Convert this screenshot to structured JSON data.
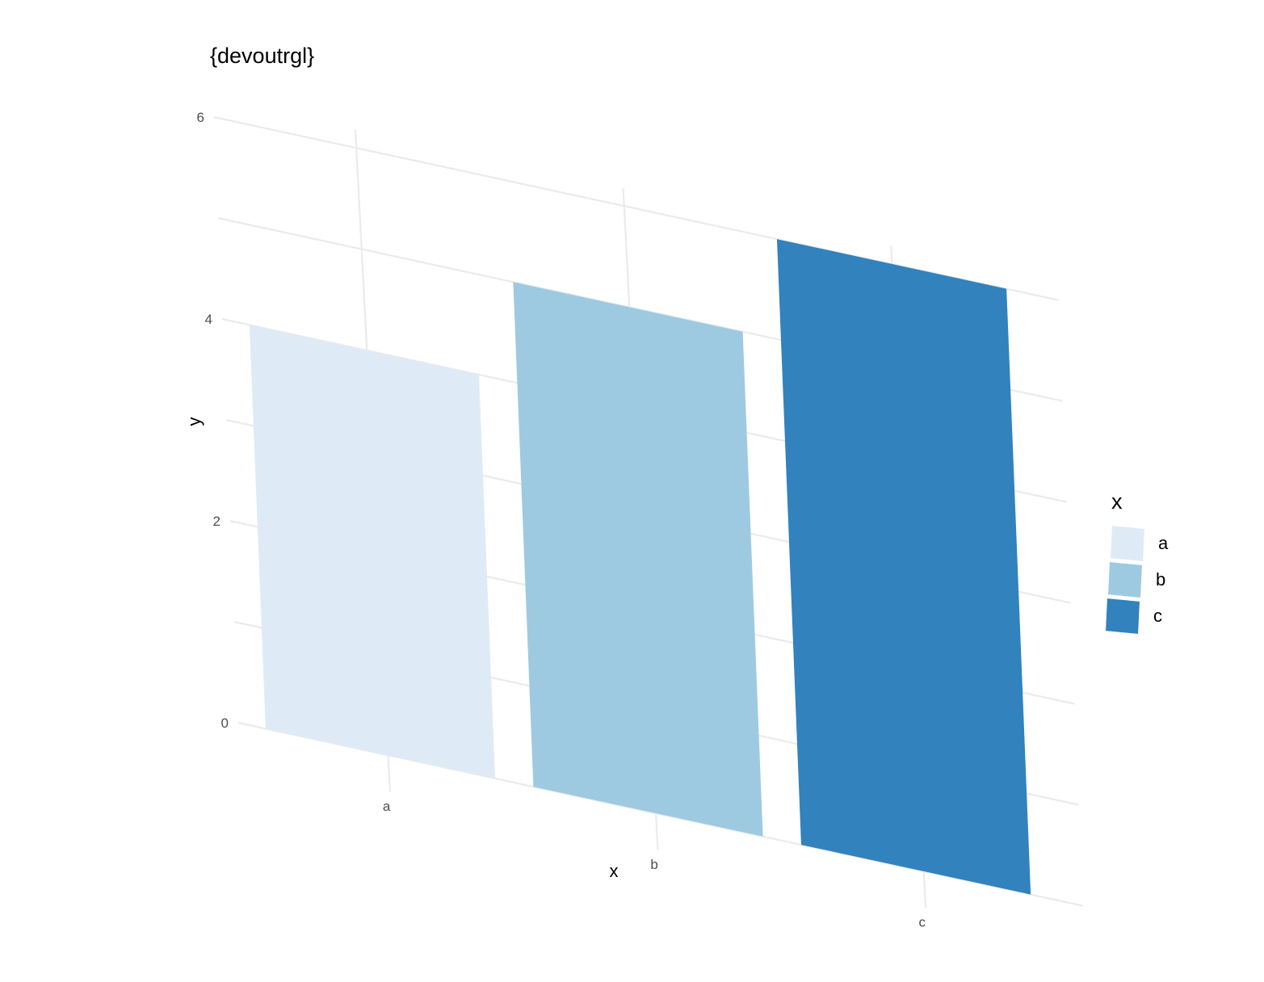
{
  "chart_data": {
    "type": "bar",
    "title": "{devoutrgl}",
    "xlabel": "x",
    "ylabel": "y",
    "categories": [
      "a",
      "b",
      "c"
    ],
    "values": [
      4,
      5,
      6
    ],
    "ylim": [
      0,
      6
    ],
    "y_ticks": [
      "0",
      "2",
      "4",
      "6"
    ],
    "grid": true,
    "legend": {
      "title": "x",
      "position": "right",
      "entries": [
        "a",
        "b",
        "c"
      ]
    },
    "colors": [
      "#deebf7",
      "#9ecae1",
      "#3182bd"
    ]
  }
}
